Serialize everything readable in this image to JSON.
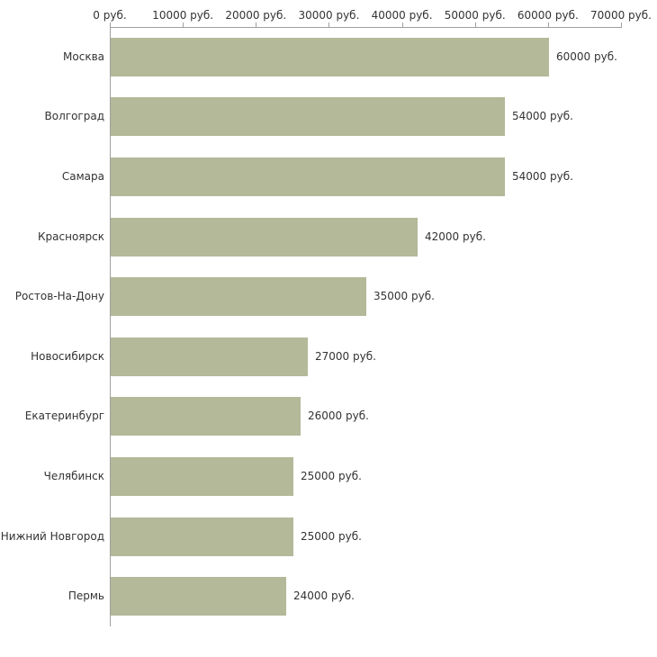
{
  "chart_data": {
    "type": "bar",
    "orientation": "horizontal",
    "title": "",
    "xlabel": "",
    "ylabel": "",
    "xlim": [
      0,
      70000
    ],
    "grid": false,
    "legend": false,
    "bar_color": "#b3b999",
    "axis_color": "#a0a0a0",
    "categories": [
      "Москва",
      "Волгоград",
      "Самара",
      "Красноярск",
      "Ростов-На-Дону",
      "Новосибирск",
      "Екатеринбург",
      "Челябинск",
      "Нижний Новгород",
      "Пермь"
    ],
    "values": [
      60000,
      54000,
      54000,
      42000,
      35000,
      27000,
      26000,
      25000,
      25000,
      24000
    ],
    "value_labels": [
      "60000 руб.",
      "54000 руб.",
      "54000 руб.",
      "42000 руб.",
      "35000 руб.",
      "27000 руб.",
      "26000 руб.",
      "25000 руб.",
      "25000 руб.",
      "24000 руб."
    ],
    "x_ticks": [
      {
        "value": 0,
        "label": "0 руб."
      },
      {
        "value": 10000,
        "label": "10000 руб."
      },
      {
        "value": 20000,
        "label": "20000 руб."
      },
      {
        "value": 30000,
        "label": "30000 руб."
      },
      {
        "value": 40000,
        "label": "40000 руб."
      },
      {
        "value": 50000,
        "label": "50000 руб."
      },
      {
        "value": 60000,
        "label": "60000 руб."
      },
      {
        "value": 70000,
        "label": "70000 руб."
      }
    ]
  }
}
